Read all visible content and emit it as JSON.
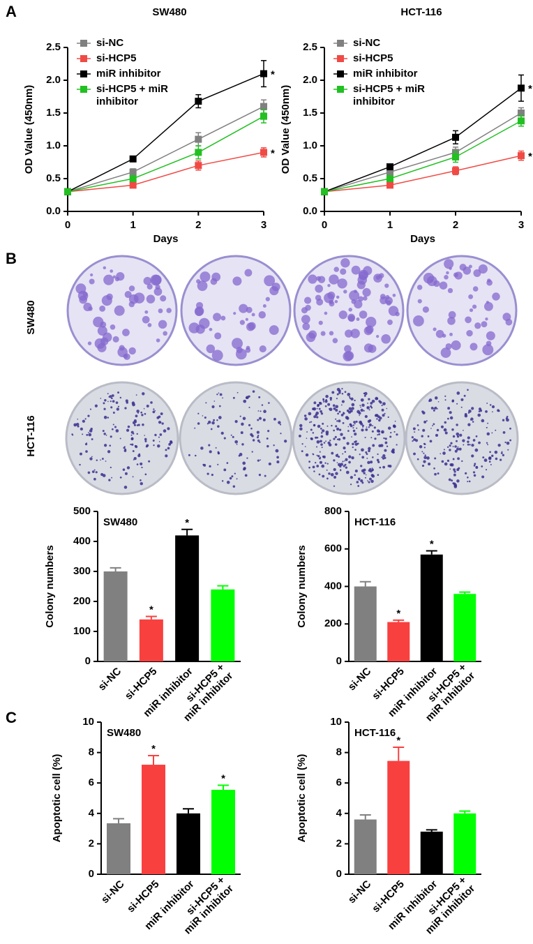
{
  "panels": [
    "A",
    "B",
    "C"
  ],
  "plates": {
    "columns": [
      "si-NC",
      "si-HCP5",
      "miR inhibitor",
      "si-HCP5 + miR inhibitor"
    ],
    "rows": [
      "SW480",
      "HCT-116"
    ]
  },
  "chart_data": [
    {
      "type": "line",
      "title": "SW480",
      "x_label": "Days",
      "y_label": "OD Value (450nm)",
      "x": [
        0,
        1,
        2,
        3
      ],
      "xlim": [
        0,
        3
      ],
      "xticks": [
        0,
        1,
        2,
        3
      ],
      "ylim": [
        0,
        2.5
      ],
      "yticks": [
        {
          "value": 0,
          "label": "0.0"
        },
        0.5,
        {
          "value": 1,
          "label": "1.0"
        },
        1.5,
        {
          "value": 2,
          "label": "2.0"
        },
        2.5
      ],
      "series": [
        {
          "name": "si-NC",
          "color": "#808080",
          "values": [
            0.3,
            0.6,
            1.1,
            1.6
          ],
          "errors": [
            0.02,
            0.05,
            0.1,
            0.1
          ]
        },
        {
          "name": "si-HCP5",
          "color": "#f04a45",
          "values": [
            0.3,
            0.4,
            0.7,
            0.9
          ],
          "errors": [
            0.02,
            0.03,
            0.07,
            0.07
          ],
          "significance": [
            null,
            null,
            null,
            "*"
          ]
        },
        {
          "name": "miR inhibitor",
          "color": "#000000",
          "values": [
            0.3,
            0.8,
            1.68,
            2.1
          ],
          "errors": [
            0.02,
            0.04,
            0.1,
            0.2
          ],
          "significance": [
            null,
            null,
            null,
            "*"
          ]
        },
        {
          "name": "si-HCP5 + miR inhibitor",
          "color": "#22c022",
          "values": [
            0.3,
            0.5,
            0.9,
            1.45
          ],
          "errors": [
            0.02,
            0.04,
            0.1,
            0.1
          ]
        }
      ]
    },
    {
      "type": "line",
      "title": "HCT-116",
      "x_label": "Days",
      "y_label": "OD Value (450nm)",
      "x": [
        0,
        1,
        2,
        3
      ],
      "xlim": [
        0,
        3
      ],
      "xticks": [
        0,
        1,
        2,
        3
      ],
      "ylim": [
        0,
        2.5
      ],
      "yticks": [
        {
          "value": 0,
          "label": "0.0"
        },
        0.5,
        {
          "value": 1,
          "label": "1.0"
        },
        1.5,
        {
          "value": 2,
          "label": "2.0"
        },
        2.5
      ],
      "series": [
        {
          "name": "si-NC",
          "color": "#808080",
          "values": [
            0.3,
            0.6,
            0.9,
            1.5
          ],
          "errors": [
            0.02,
            0.04,
            0.08,
            0.08
          ]
        },
        {
          "name": "si-HCP5",
          "color": "#f04a45",
          "values": [
            0.3,
            0.4,
            0.62,
            0.85
          ],
          "errors": [
            0.02,
            0.03,
            0.06,
            0.07
          ],
          "significance": [
            null,
            null,
            null,
            "*"
          ]
        },
        {
          "name": "miR inhibitor",
          "color": "#000000",
          "values": [
            0.3,
            0.68,
            1.13,
            1.88
          ],
          "errors": [
            0.02,
            0.04,
            0.1,
            0.2
          ],
          "significance": [
            null,
            null,
            null,
            "*"
          ]
        },
        {
          "name": "si-HCP5 + miR inhibitor",
          "color": "#22c022",
          "values": [
            0.3,
            0.5,
            0.83,
            1.38
          ],
          "errors": [
            0.02,
            0.04,
            0.08,
            0.08
          ]
        }
      ]
    },
    {
      "type": "bar",
      "title": "SW480",
      "y_label": "Colony numbers",
      "categories": [
        "si-NC",
        "si-HCP5",
        "miR inhibitor",
        "si-HCP5 + miR inhibitor"
      ],
      "values": [
        300,
        140,
        420,
        240
      ],
      "errors": [
        12,
        10,
        20,
        12
      ],
      "significance": [
        null,
        "*",
        "*",
        null
      ],
      "colors": [
        "#808080",
        "#f8403f",
        "#000000",
        "#00ff00"
      ],
      "ylim": [
        0,
        500
      ],
      "yticks": [
        0,
        100,
        200,
        300,
        400,
        500
      ]
    },
    {
      "type": "bar",
      "title": "HCT-116",
      "y_label": "Colony numbers",
      "categories": [
        "si-NC",
        "si-HCP5",
        "miR inhibitor",
        "si-HCP5 + miR inhibitor"
      ],
      "values": [
        400,
        210,
        570,
        360
      ],
      "errors": [
        25,
        10,
        20,
        10
      ],
      "significance": [
        null,
        "*",
        "*",
        null
      ],
      "colors": [
        "#808080",
        "#f8403f",
        "#000000",
        "#00ff00"
      ],
      "ylim": [
        0,
        800
      ],
      "yticks": [
        0,
        200,
        400,
        600,
        800
      ]
    },
    {
      "type": "bar",
      "title": "SW480",
      "y_label": "Apoptotic cell (%)",
      "categories": [
        "si-NC",
        "si-HCP5",
        "miR inhibitor",
        "si-HCP5 + miR inhibitor"
      ],
      "values": [
        3.35,
        7.2,
        4.0,
        5.55
      ],
      "errors": [
        0.3,
        0.6,
        0.3,
        0.3
      ],
      "significance": [
        null,
        "*",
        null,
        "*"
      ],
      "colors": [
        "#808080",
        "#f8403f",
        "#000000",
        "#00ff00"
      ],
      "ylim": [
        0,
        10
      ],
      "yticks": [
        0,
        2,
        4,
        6,
        8,
        10
      ]
    },
    {
      "type": "bar",
      "title": "HCT-116",
      "y_label": "Apoptotic cell (%)",
      "categories": [
        "si-NC",
        "si-HCP5",
        "miR inhibitor",
        "si-HCP5 + miR inhibitor"
      ],
      "values": [
        3.6,
        7.45,
        2.8,
        4.0
      ],
      "errors": [
        0.3,
        0.9,
        0.12,
        0.15
      ],
      "significance": [
        null,
        "*",
        null,
        null
      ],
      "colors": [
        "#808080",
        "#f8403f",
        "#000000",
        "#00ff00"
      ],
      "ylim": [
        0,
        10
      ],
      "yticks": [
        0,
        2,
        4,
        6,
        8,
        10
      ]
    }
  ]
}
